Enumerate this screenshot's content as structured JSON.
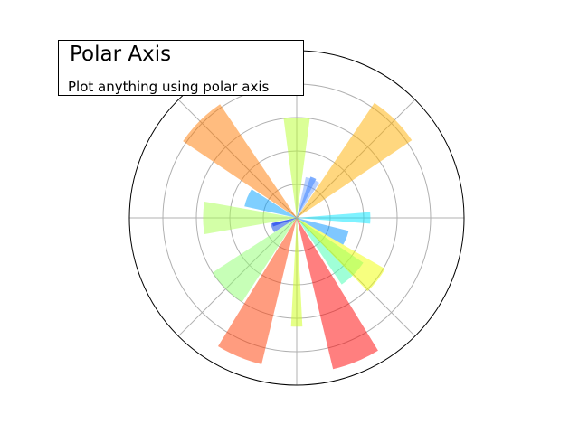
{
  "chart_data": {
    "type": "bar",
    "projection": "polar",
    "title": "Polar Axis",
    "subtitle": "Plot anything using polar axis",
    "rmax": 10,
    "rgrid": [
      2,
      4,
      6,
      8
    ],
    "angular_grid_deg": [
      0,
      45,
      90,
      135,
      180,
      225,
      270,
      315
    ],
    "grid": true,
    "colormap": "jet",
    "bar_alpha": 0.5,
    "bars": [
      {
        "angle_deg": 0,
        "width_deg": 9,
        "value": 4.4,
        "color": "#00e5ff"
      },
      {
        "angle_deg": 45,
        "width_deg": 22,
        "value": 8.3,
        "color": "#ffb000"
      },
      {
        "angle_deg": 67.5,
        "width_deg": 8,
        "value": 2.6,
        "color": "#0060ff"
      },
      {
        "angle_deg": 67.5,
        "width_deg": 20,
        "value": 2.5,
        "color": "#6ea0ff"
      },
      {
        "angle_deg": 90,
        "width_deg": 15,
        "value": 6.0,
        "color": "#b8ff2e"
      },
      {
        "angle_deg": 135,
        "width_deg": 22,
        "value": 8.2,
        "color": "#ff7a00"
      },
      {
        "angle_deg": 157.5,
        "width_deg": 20,
        "value": 3.2,
        "color": "#00a0ff"
      },
      {
        "angle_deg": 180,
        "width_deg": 20,
        "value": 5.6,
        "color": "#a8ff50"
      },
      {
        "angle_deg": 196,
        "width_deg": 8,
        "value": 1.5,
        "color": "#0010ff"
      },
      {
        "angle_deg": 202.5,
        "width_deg": 20,
        "value": 1.6,
        "color": "#0040e0"
      },
      {
        "angle_deg": 225,
        "width_deg": 24,
        "value": 6.0,
        "color": "#90ff70"
      },
      {
        "angle_deg": 247.5,
        "width_deg": 18,
        "value": 9.0,
        "color": "#ff3a00"
      },
      {
        "angle_deg": 270,
        "width_deg": 6,
        "value": 6.5,
        "color": "#ccff10"
      },
      {
        "angle_deg": 292.5,
        "width_deg": 18,
        "value": 9.3,
        "color": "#ff0000"
      },
      {
        "angle_deg": 315,
        "width_deg": 22,
        "value": 4.8,
        "color": "#40ffb0"
      },
      {
        "angle_deg": 322,
        "width_deg": 16,
        "value": 6.1,
        "color": "#f0ff00"
      },
      {
        "angle_deg": 338,
        "width_deg": 16,
        "value": 3.2,
        "color": "#0090ff"
      }
    ]
  }
}
